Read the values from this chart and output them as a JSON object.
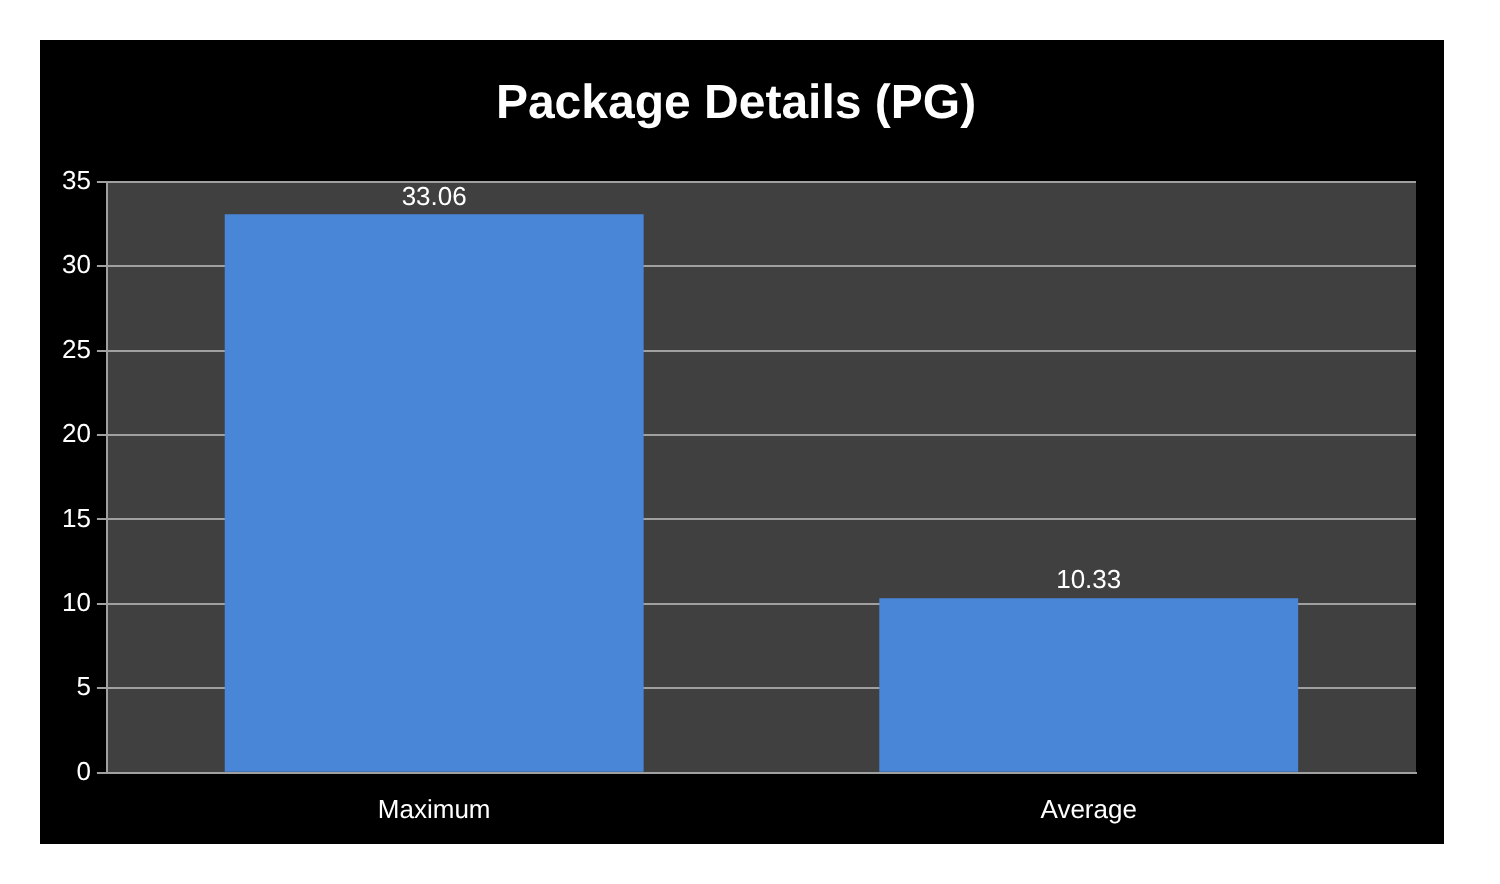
{
  "chart_data": {
    "type": "bar",
    "title": "Package Details (PG)",
    "categories": [
      "Maximum",
      "Average"
    ],
    "values": [
      33.06,
      10.33
    ],
    "color": "#4a86d8",
    "ylim": [
      0,
      35
    ],
    "yticks": [
      0,
      5,
      10,
      15,
      20,
      25,
      30,
      35
    ],
    "grid": "y",
    "legend": false,
    "data_labels": true
  }
}
